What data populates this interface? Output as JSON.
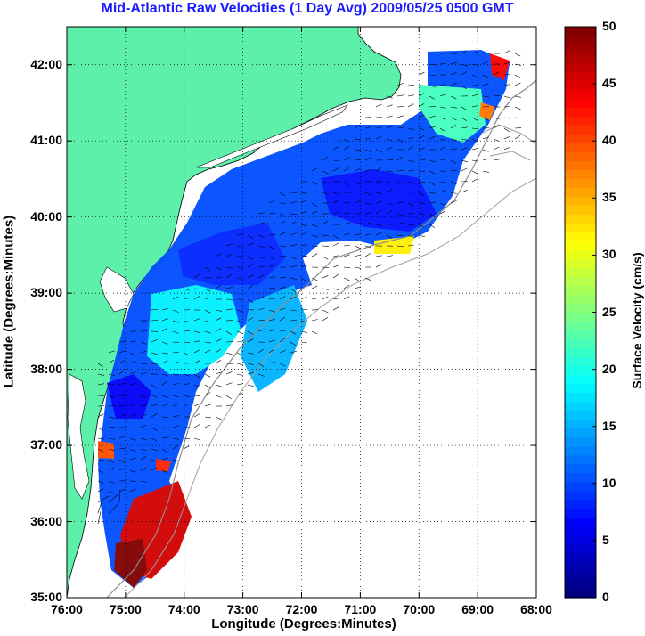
{
  "title": "Mid-Atlantic Raw Velocities (1 Day Avg) 2009/05/25 0500 GMT",
  "map": {
    "xlabel": "Longitude (Degrees:Minutes)",
    "ylabel": "Latitude (Degrees:Minutes)",
    "lon_range": [
      -76,
      -68
    ],
    "lat_range": [
      35,
      42.5
    ],
    "lon_ticks": [
      {
        "value": -76,
        "label": "76:00"
      },
      {
        "value": -75,
        "label": "75:00"
      },
      {
        "value": -74,
        "label": "74:00"
      },
      {
        "value": -73,
        "label": "73:00"
      },
      {
        "value": -72,
        "label": "72:00"
      },
      {
        "value": -71,
        "label": "71:00"
      },
      {
        "value": -70,
        "label": "70:00"
      },
      {
        "value": -69,
        "label": "69:00"
      },
      {
        "value": -68,
        "label": "68:00"
      }
    ],
    "lat_ticks": [
      {
        "value": 35,
        "label": "35:00"
      },
      {
        "value": 36,
        "label": "36:00"
      },
      {
        "value": 37,
        "label": "37:00"
      },
      {
        "value": 38,
        "label": "38:00"
      },
      {
        "value": 39,
        "label": "39:00"
      },
      {
        "value": 40,
        "label": "40:00"
      },
      {
        "value": 41,
        "label": "41:00"
      },
      {
        "value": 42,
        "label": "42:00"
      }
    ],
    "land_color": "#5cf0ab",
    "gridlines": "dotted"
  },
  "colorbar": {
    "label": "Surface Velocity (cm/s)",
    "range": [
      0,
      50
    ],
    "ticks": [
      {
        "value": 0,
        "label": "0"
      },
      {
        "value": 5,
        "label": "5"
      },
      {
        "value": 10,
        "label": "10"
      },
      {
        "value": 15,
        "label": "15"
      },
      {
        "value": 20,
        "label": "20"
      },
      {
        "value": 25,
        "label": "25"
      },
      {
        "value": 30,
        "label": "30"
      },
      {
        "value": 35,
        "label": "35"
      },
      {
        "value": 40,
        "label": "40"
      },
      {
        "value": 45,
        "label": "45"
      },
      {
        "value": 50,
        "label": "50"
      }
    ],
    "colormap": "jet"
  }
}
